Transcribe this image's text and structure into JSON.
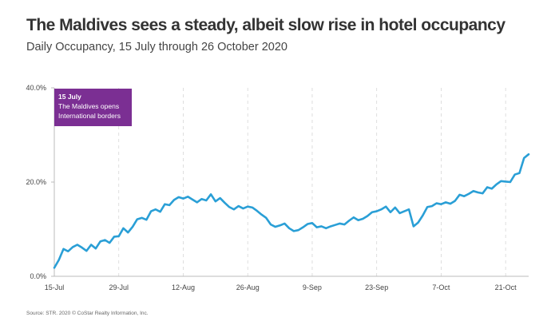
{
  "title": "The Maldives sees a steady, albeit slow rise in hotel occupancy",
  "subtitle": "Daily Occupancy, 15 July through 26 October 2020",
  "source": "Source: STR. 2020 © CoStar Realty Information, Inc.",
  "annotation": {
    "date": "15 July",
    "line1": "The Maldives opens",
    "line2": "International borders",
    "color": "#7b2f93"
  },
  "chart_data": {
    "type": "line",
    "title": "The Maldives sees a steady, albeit slow rise in hotel occupancy",
    "subtitle": "Daily Occupancy, 15 July through 26 October 2020",
    "xlabel": "",
    "ylabel": "",
    "x_ticks": [
      "15-Jul",
      "29-Jul",
      "12-Aug",
      "26-Aug",
      "9-Sep",
      "23-Sep",
      "7-Oct",
      "21-Oct"
    ],
    "y_ticks": [
      "0.0%",
      "20.0%",
      "40.0%"
    ],
    "ylim": [
      0,
      40
    ],
    "x_range": [
      "2020-07-15",
      "2020-10-26"
    ],
    "grid": "vertical dashed",
    "line_color": "#2a9fd6",
    "series": [
      {
        "values": [
          [
            "2020-07-15",
            1.8
          ],
          [
            "2020-07-16",
            3.5
          ],
          [
            "2020-07-17",
            5.8
          ],
          [
            "2020-07-18",
            5.3
          ],
          [
            "2020-07-19",
            6.2
          ],
          [
            "2020-07-20",
            6.7
          ],
          [
            "2020-07-21",
            6.1
          ],
          [
            "2020-07-22",
            5.4
          ],
          [
            "2020-07-23",
            6.7
          ],
          [
            "2020-07-24",
            5.9
          ],
          [
            "2020-07-25",
            7.4
          ],
          [
            "2020-07-26",
            7.7
          ],
          [
            "2020-07-27",
            7.1
          ],
          [
            "2020-07-28",
            8.4
          ],
          [
            "2020-07-29",
            8.5
          ],
          [
            "2020-07-30",
            10.2
          ],
          [
            "2020-07-31",
            9.3
          ],
          [
            "2020-08-01",
            10.5
          ],
          [
            "2020-08-02",
            12.1
          ],
          [
            "2020-08-03",
            12.4
          ],
          [
            "2020-08-04",
            12.0
          ],
          [
            "2020-08-05",
            13.8
          ],
          [
            "2020-08-06",
            14.2
          ],
          [
            "2020-08-07",
            13.7
          ],
          [
            "2020-08-08",
            15.3
          ],
          [
            "2020-08-09",
            15.1
          ],
          [
            "2020-08-10",
            16.2
          ],
          [
            "2020-08-11",
            16.8
          ],
          [
            "2020-08-12",
            16.5
          ],
          [
            "2020-08-13",
            16.9
          ],
          [
            "2020-08-14",
            16.3
          ],
          [
            "2020-08-15",
            15.7
          ],
          [
            "2020-08-16",
            16.4
          ],
          [
            "2020-08-17",
            16.1
          ],
          [
            "2020-08-18",
            17.4
          ],
          [
            "2020-08-19",
            15.9
          ],
          [
            "2020-08-20",
            16.6
          ],
          [
            "2020-08-21",
            15.6
          ],
          [
            "2020-08-22",
            14.7
          ],
          [
            "2020-08-23",
            14.2
          ],
          [
            "2020-08-24",
            14.9
          ],
          [
            "2020-08-25",
            14.4
          ],
          [
            "2020-08-26",
            14.8
          ],
          [
            "2020-08-27",
            14.6
          ],
          [
            "2020-08-28",
            13.9
          ],
          [
            "2020-08-29",
            13.1
          ],
          [
            "2020-08-30",
            12.4
          ],
          [
            "2020-08-31",
            11.0
          ],
          [
            "2020-09-01",
            10.5
          ],
          [
            "2020-09-02",
            10.8
          ],
          [
            "2020-09-03",
            11.2
          ],
          [
            "2020-09-04",
            10.2
          ],
          [
            "2020-09-05",
            9.6
          ],
          [
            "2020-09-06",
            9.8
          ],
          [
            "2020-09-07",
            10.4
          ],
          [
            "2020-09-08",
            11.1
          ],
          [
            "2020-09-09",
            11.3
          ],
          [
            "2020-09-10",
            10.4
          ],
          [
            "2020-09-11",
            10.6
          ],
          [
            "2020-09-12",
            10.2
          ],
          [
            "2020-09-13",
            10.6
          ],
          [
            "2020-09-14",
            10.9
          ],
          [
            "2020-09-15",
            11.2
          ],
          [
            "2020-09-16",
            11.0
          ],
          [
            "2020-09-17",
            11.8
          ],
          [
            "2020-09-18",
            12.5
          ],
          [
            "2020-09-19",
            11.9
          ],
          [
            "2020-09-20",
            12.2
          ],
          [
            "2020-09-21",
            12.8
          ],
          [
            "2020-09-22",
            13.6
          ],
          [
            "2020-09-23",
            13.8
          ],
          [
            "2020-09-24",
            14.2
          ],
          [
            "2020-09-25",
            14.8
          ],
          [
            "2020-09-26",
            13.6
          ],
          [
            "2020-09-27",
            14.6
          ],
          [
            "2020-09-28",
            13.4
          ],
          [
            "2020-09-29",
            13.8
          ],
          [
            "2020-09-30",
            14.2
          ],
          [
            "2020-10-01",
            10.6
          ],
          [
            "2020-10-02",
            11.4
          ],
          [
            "2020-10-03",
            12.9
          ],
          [
            "2020-10-04",
            14.7
          ],
          [
            "2020-10-05",
            14.9
          ],
          [
            "2020-10-06",
            15.5
          ],
          [
            "2020-10-07",
            15.3
          ],
          [
            "2020-10-08",
            15.7
          ],
          [
            "2020-10-09",
            15.4
          ],
          [
            "2020-10-10",
            16.0
          ],
          [
            "2020-10-11",
            17.3
          ],
          [
            "2020-10-12",
            17.0
          ],
          [
            "2020-10-13",
            17.5
          ],
          [
            "2020-10-14",
            18.1
          ],
          [
            "2020-10-15",
            17.8
          ],
          [
            "2020-10-16",
            17.6
          ],
          [
            "2020-10-17",
            18.9
          ],
          [
            "2020-10-18",
            18.6
          ],
          [
            "2020-10-19",
            19.5
          ],
          [
            "2020-10-20",
            20.2
          ],
          [
            "2020-10-21",
            20.1
          ],
          [
            "2020-10-22",
            20.0
          ],
          [
            "2020-10-23",
            21.6
          ],
          [
            "2020-10-24",
            21.9
          ],
          [
            "2020-10-25",
            25.1
          ],
          [
            "2020-10-26",
            25.9
          ]
        ]
      }
    ]
  }
}
